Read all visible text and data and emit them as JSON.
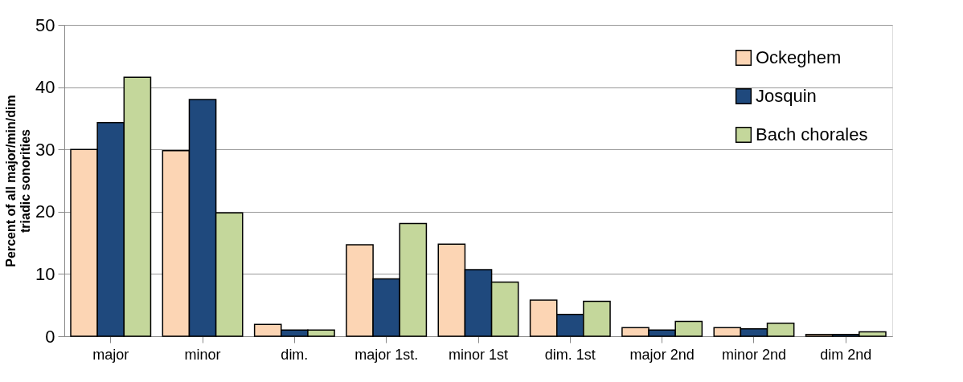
{
  "chart_data": {
    "type": "bar",
    "ylabel": "Percent of all major/min/dim triadic sonorities",
    "categories": [
      "major",
      "minor",
      "dim.",
      "major 1st.",
      "minor 1st",
      "dim. 1st",
      "major 2nd",
      "minor 2nd",
      "dim 2nd"
    ],
    "series": [
      {
        "name": "Ockeghem",
        "color": "#fcd5b4",
        "values": [
          30,
          29.8,
          1.9,
          14.7,
          14.8,
          5.8,
          1.4,
          1.4,
          0.3
        ]
      },
      {
        "name": "Josquin",
        "color": "#1f497d",
        "values": [
          34.3,
          38,
          1.0,
          9.2,
          10.7,
          3.5,
          1.0,
          1.2,
          0.3
        ]
      },
      {
        "name": "Bach chorales",
        "color": "#c4d79b",
        "values": [
          41.6,
          19.8,
          1.0,
          18.1,
          8.7,
          5.6,
          2.4,
          2.1,
          0.7
        ]
      }
    ],
    "ylim": [
      0,
      50
    ],
    "yticks": [
      0,
      10,
      20,
      30,
      40,
      50
    ],
    "grid": "y",
    "legend": "top right"
  }
}
